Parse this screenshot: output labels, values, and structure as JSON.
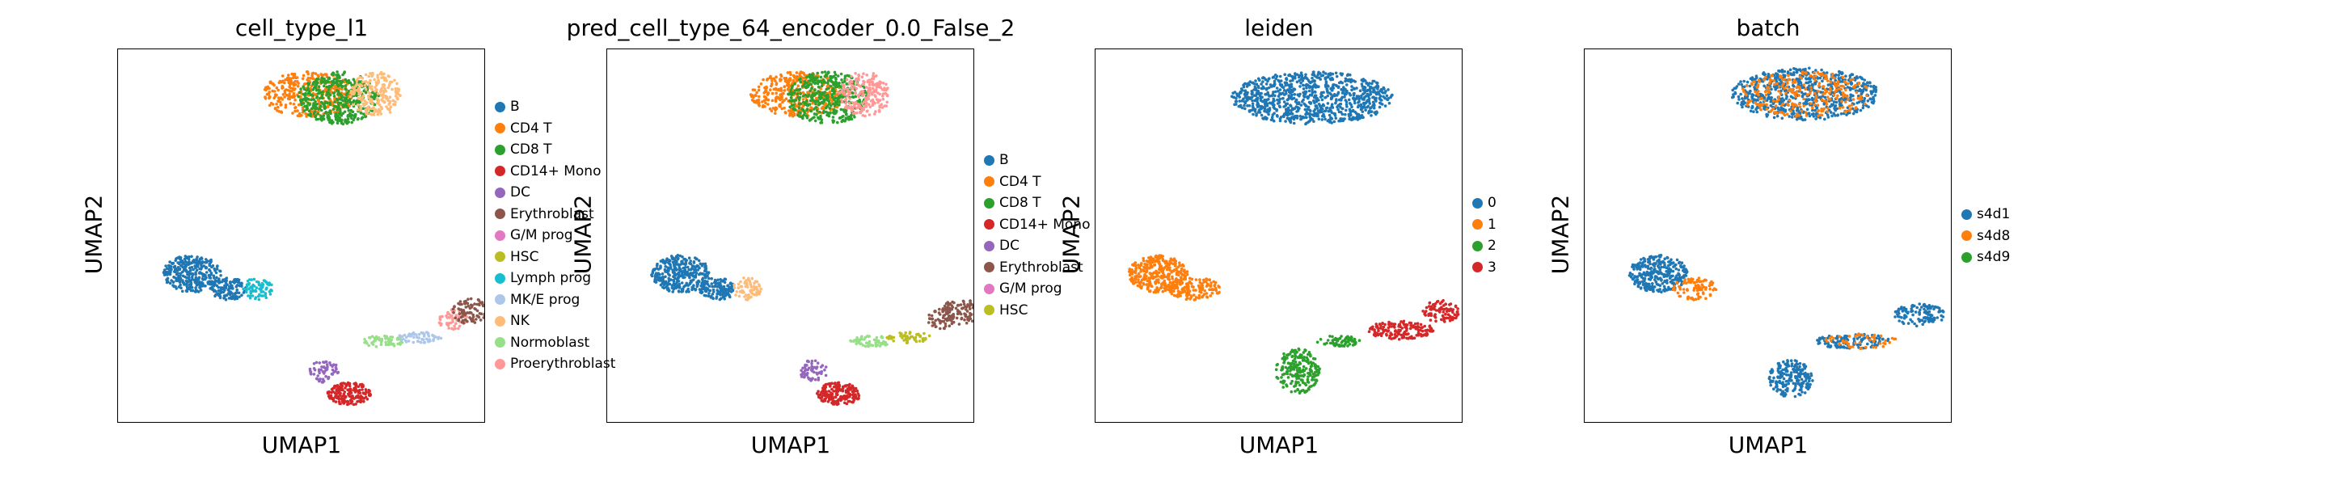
{
  "chart_data": [
    {
      "type": "scatter",
      "title": "cell_type_l1",
      "xlabel": "UMAP1",
      "ylabel": "UMAP2",
      "legend_placement": "right-outside",
      "legend": [
        {
          "label": "B",
          "color": "#1f77b4"
        },
        {
          "label": "CD4 T",
          "color": "#ff7f0e"
        },
        {
          "label": "CD8 T",
          "color": "#2ca02c"
        },
        {
          "label": "CD14+ Mono",
          "color": "#d62728"
        },
        {
          "label": "DC",
          "color": "#9467bd"
        },
        {
          "label": "Erythroblast",
          "color": "#8c564b"
        },
        {
          "label": "G/M prog",
          "color": "#e377c2"
        },
        {
          "label": "HSC",
          "color": "#bcbd22"
        },
        {
          "label": "Lymph prog",
          "color": "#17becf"
        },
        {
          "label": "MK/E prog",
          "color": "#aec7e8"
        },
        {
          "label": "NK",
          "color": "#ffbb78"
        },
        {
          "label": "Normoblast",
          "color": "#98df8a"
        },
        {
          "label": "Proerythroblast",
          "color": "#ff9896"
        }
      ],
      "clusters": [
        {
          "cx": 0.52,
          "cy": 0.12,
          "rx": 0.13,
          "ry": 0.06,
          "color": "#ff7f0e",
          "n": 380
        },
        {
          "cx": 0.6,
          "cy": 0.13,
          "rx": 0.11,
          "ry": 0.07,
          "color": "#2ca02c",
          "n": 420
        },
        {
          "cx": 0.7,
          "cy": 0.12,
          "rx": 0.07,
          "ry": 0.06,
          "color": "#ffbb78",
          "n": 200
        },
        {
          "cx": 0.2,
          "cy": 0.6,
          "rx": 0.08,
          "ry": 0.05,
          "color": "#1f77b4",
          "n": 320
        },
        {
          "cx": 0.3,
          "cy": 0.64,
          "rx": 0.05,
          "ry": 0.03,
          "color": "#1f77b4",
          "n": 120
        },
        {
          "cx": 0.38,
          "cy": 0.64,
          "rx": 0.04,
          "ry": 0.03,
          "color": "#17becf",
          "n": 70
        },
        {
          "cx": 0.63,
          "cy": 0.92,
          "rx": 0.06,
          "ry": 0.03,
          "color": "#d62728",
          "n": 180
        },
        {
          "cx": 0.56,
          "cy": 0.86,
          "rx": 0.04,
          "ry": 0.03,
          "color": "#9467bd",
          "n": 60
        },
        {
          "cx": 0.72,
          "cy": 0.78,
          "rx": 0.06,
          "ry": 0.015,
          "color": "#98df8a",
          "n": 60
        },
        {
          "cx": 0.82,
          "cy": 0.77,
          "rx": 0.06,
          "ry": 0.015,
          "color": "#aec7e8",
          "n": 60
        },
        {
          "cx": 0.91,
          "cy": 0.72,
          "rx": 0.04,
          "ry": 0.03,
          "color": "#ff9896",
          "n": 50
        },
        {
          "cx": 0.96,
          "cy": 0.7,
          "rx": 0.05,
          "ry": 0.035,
          "color": "#8c564b",
          "n": 90
        }
      ]
    },
    {
      "type": "scatter",
      "title": "pred_cell_type_64_encoder_0.0_False_2",
      "xlabel": "UMAP1",
      "ylabel": "UMAP2",
      "legend_placement": "right-outside",
      "legend": [
        {
          "label": "B",
          "color": "#1f77b4"
        },
        {
          "label": "CD4 T",
          "color": "#ff7f0e"
        },
        {
          "label": "CD8 T",
          "color": "#2ca02c"
        },
        {
          "label": "CD14+ Mono",
          "color": "#d62728"
        },
        {
          "label": "DC",
          "color": "#9467bd"
        },
        {
          "label": "Erythroblast",
          "color": "#8c564b"
        },
        {
          "label": "G/M prog",
          "color": "#e377c2"
        },
        {
          "label": "HSC",
          "color": "#bcbd22"
        }
      ],
      "clusters": [
        {
          "cx": 0.52,
          "cy": 0.12,
          "rx": 0.13,
          "ry": 0.06,
          "color": "#ff7f0e",
          "n": 380
        },
        {
          "cx": 0.6,
          "cy": 0.13,
          "rx": 0.11,
          "ry": 0.07,
          "color": "#2ca02c",
          "n": 420
        },
        {
          "cx": 0.7,
          "cy": 0.12,
          "rx": 0.07,
          "ry": 0.06,
          "color": "#ff9896",
          "n": 200
        },
        {
          "cx": 0.2,
          "cy": 0.6,
          "rx": 0.08,
          "ry": 0.05,
          "color": "#1f77b4",
          "n": 320
        },
        {
          "cx": 0.3,
          "cy": 0.64,
          "rx": 0.05,
          "ry": 0.03,
          "color": "#1f77b4",
          "n": 120
        },
        {
          "cx": 0.38,
          "cy": 0.64,
          "rx": 0.04,
          "ry": 0.03,
          "color": "#ffbb78",
          "n": 70
        },
        {
          "cx": 0.63,
          "cy": 0.92,
          "rx": 0.06,
          "ry": 0.03,
          "color": "#d62728",
          "n": 180
        },
        {
          "cx": 0.56,
          "cy": 0.86,
          "rx": 0.04,
          "ry": 0.03,
          "color": "#9467bd",
          "n": 60
        },
        {
          "cx": 0.72,
          "cy": 0.78,
          "rx": 0.06,
          "ry": 0.015,
          "color": "#98df8a",
          "n": 60
        },
        {
          "cx": 0.82,
          "cy": 0.77,
          "rx": 0.06,
          "ry": 0.015,
          "color": "#bcbd22",
          "n": 60
        },
        {
          "cx": 0.91,
          "cy": 0.72,
          "rx": 0.04,
          "ry": 0.03,
          "color": "#8c564b",
          "n": 60
        },
        {
          "cx": 0.96,
          "cy": 0.7,
          "rx": 0.05,
          "ry": 0.035,
          "color": "#8c564b",
          "n": 90
        }
      ]
    },
    {
      "type": "scatter",
      "title": "leiden",
      "xlabel": "UMAP1",
      "ylabel": "UMAP2",
      "legend_placement": "right-outside",
      "legend": [
        {
          "label": "0",
          "color": "#1f77b4"
        },
        {
          "label": "1",
          "color": "#ff7f0e"
        },
        {
          "label": "2",
          "color": "#2ca02c"
        },
        {
          "label": "3",
          "color": "#d62728"
        }
      ],
      "clusters": [
        {
          "cx": 0.59,
          "cy": 0.13,
          "rx": 0.22,
          "ry": 0.07,
          "color": "#1f77b4",
          "n": 900
        },
        {
          "cx": 0.17,
          "cy": 0.6,
          "rx": 0.08,
          "ry": 0.05,
          "color": "#ff7f0e",
          "n": 320
        },
        {
          "cx": 0.27,
          "cy": 0.64,
          "rx": 0.07,
          "ry": 0.03,
          "color": "#ff7f0e",
          "n": 140
        },
        {
          "cx": 0.55,
          "cy": 0.86,
          "rx": 0.06,
          "ry": 0.06,
          "color": "#2ca02c",
          "n": 220
        },
        {
          "cx": 0.66,
          "cy": 0.78,
          "rx": 0.06,
          "ry": 0.015,
          "color": "#2ca02c",
          "n": 70
        },
        {
          "cx": 0.83,
          "cy": 0.75,
          "rx": 0.09,
          "ry": 0.025,
          "color": "#d62728",
          "n": 160
        },
        {
          "cx": 0.94,
          "cy": 0.7,
          "rx": 0.05,
          "ry": 0.03,
          "color": "#d62728",
          "n": 90
        }
      ]
    },
    {
      "type": "scatter",
      "title": "batch",
      "xlabel": "UMAP1",
      "ylabel": "UMAP2",
      "legend_placement": "right-outside",
      "legend": [
        {
          "label": "s4d1",
          "color": "#1f77b4"
        },
        {
          "label": "s4d8",
          "color": "#ff7f0e"
        },
        {
          "label": "s4d9",
          "color": "#2ca02c"
        }
      ],
      "clusters": [
        {
          "cx": 0.6,
          "cy": 0.12,
          "rx": 0.2,
          "ry": 0.07,
          "color": "#1f77b4",
          "n": 700
        },
        {
          "cx": 0.6,
          "cy": 0.12,
          "rx": 0.18,
          "ry": 0.06,
          "color": "#ff7f0e",
          "n": 260
        },
        {
          "cx": 0.2,
          "cy": 0.6,
          "rx": 0.08,
          "ry": 0.05,
          "color": "#1f77b4",
          "n": 300
        },
        {
          "cx": 0.3,
          "cy": 0.64,
          "rx": 0.06,
          "ry": 0.03,
          "color": "#ff7f0e",
          "n": 90
        },
        {
          "cx": 0.56,
          "cy": 0.88,
          "rx": 0.06,
          "ry": 0.05,
          "color": "#1f77b4",
          "n": 200
        },
        {
          "cx": 0.73,
          "cy": 0.78,
          "rx": 0.1,
          "ry": 0.02,
          "color": "#1f77b4",
          "n": 120
        },
        {
          "cx": 0.75,
          "cy": 0.78,
          "rx": 0.1,
          "ry": 0.02,
          "color": "#ff7f0e",
          "n": 50
        },
        {
          "cx": 0.91,
          "cy": 0.71,
          "rx": 0.07,
          "ry": 0.03,
          "color": "#1f77b4",
          "n": 120
        }
      ]
    }
  ]
}
